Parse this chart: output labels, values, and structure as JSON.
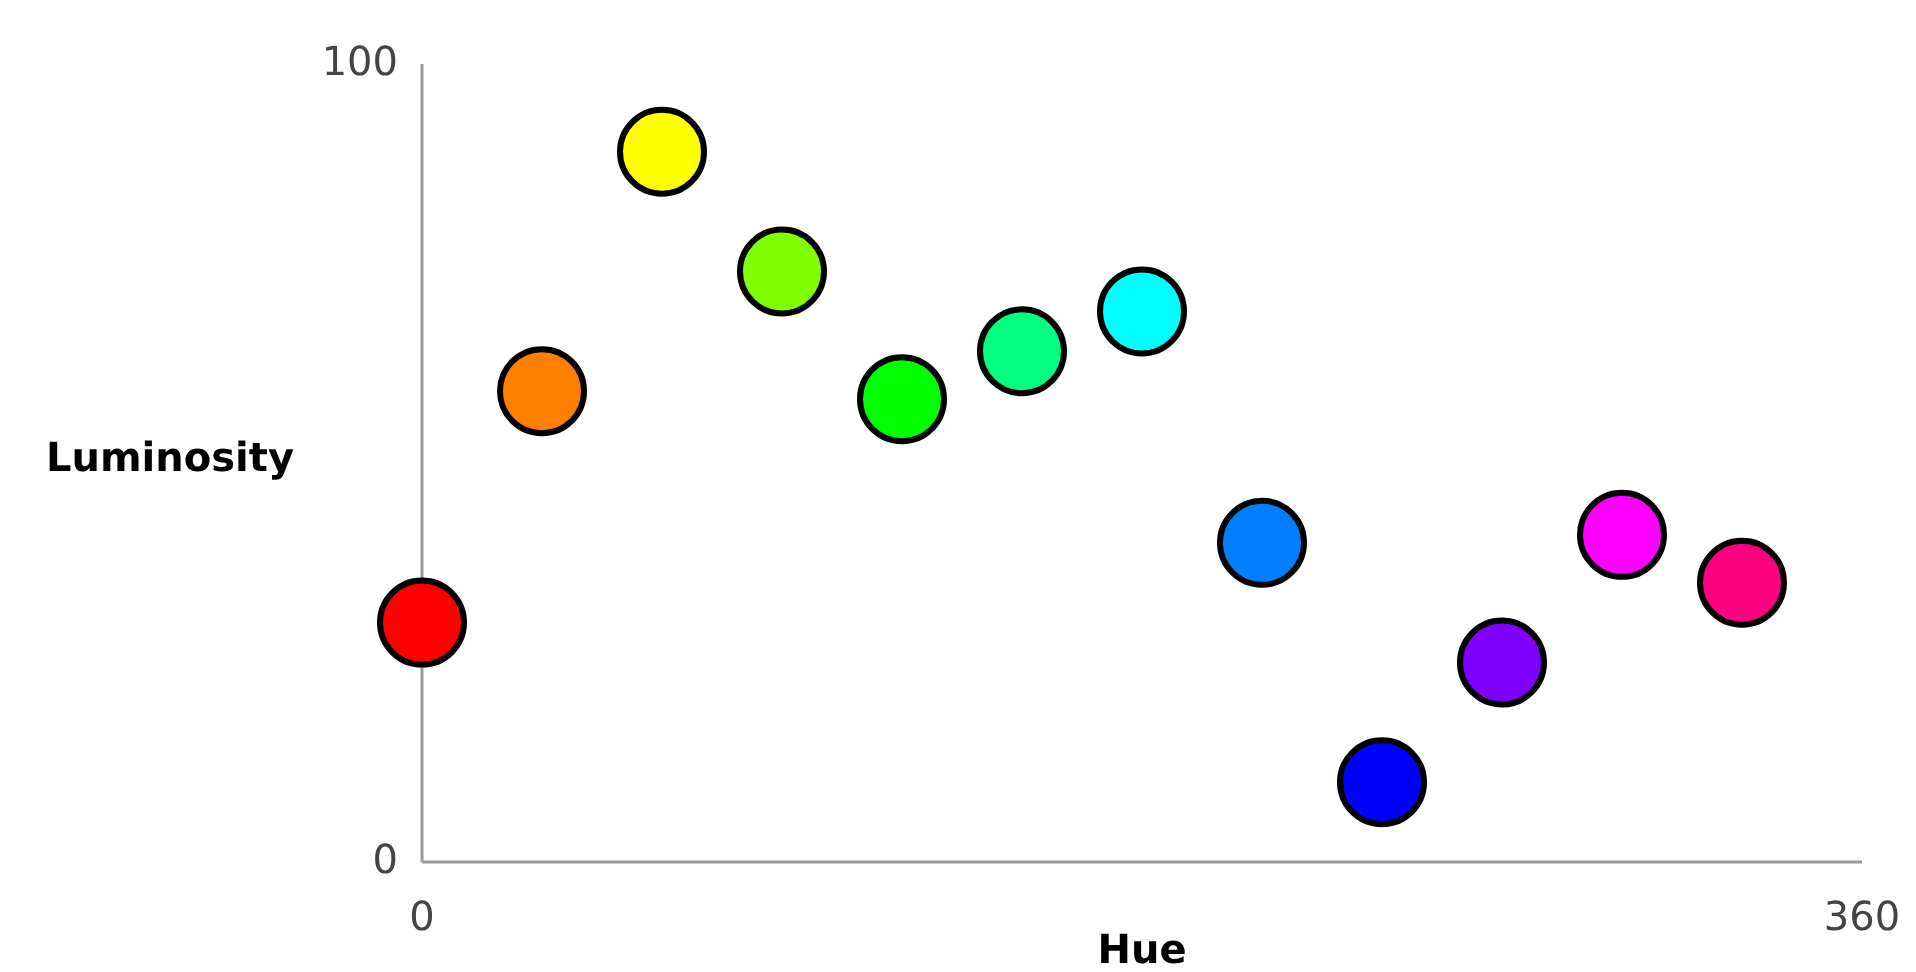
{
  "chart_data": {
    "type": "scatter",
    "xlabel": "Hue",
    "ylabel": "Luminosity",
    "x": [
      0,
      30,
      60,
      90,
      120,
      150,
      180,
      210,
      240,
      270,
      300,
      330
    ],
    "values": [
      30,
      59,
      89,
      74,
      58,
      64,
      69,
      40,
      10,
      25,
      41,
      35
    ],
    "colors": [
      "#ff0000",
      "#ff8000",
      "#ffff00",
      "#80ff00",
      "#00ff00",
      "#00ff80",
      "#00ffff",
      "#0080ff",
      "#0000ff",
      "#8000ff",
      "#ff00ff",
      "#ff0080"
    ],
    "xlim": [
      0,
      360
    ],
    "ylim": [
      0,
      100
    ],
    "xticks": [
      0,
      360
    ],
    "yticks": [
      0,
      100
    ],
    "grid": false,
    "marker": "circle"
  }
}
